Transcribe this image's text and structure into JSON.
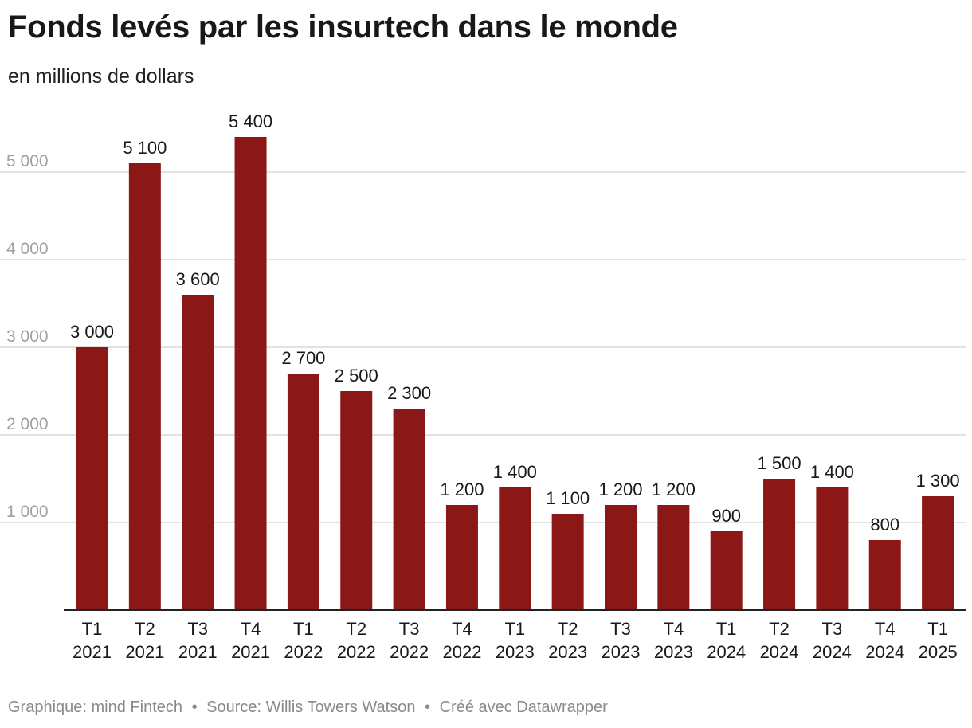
{
  "header": {
    "title": "Fonds levés par les insurtech dans le monde",
    "subtitle": "en millions de dollars"
  },
  "footer": {
    "graphic_label": "Graphique: mind Fintech",
    "source_label": "Source: Willis Towers Watson",
    "created_label": "Créé avec Datawrapper",
    "separator": "•"
  },
  "colors": {
    "bar": "#8b1717",
    "grid": "#d9d9d9",
    "axis_tick_text": "#a0a0a0",
    "baseline": "#222222"
  },
  "chart_data": {
    "type": "bar",
    "categories": [
      [
        "T1",
        "2021"
      ],
      [
        "T2",
        "2021"
      ],
      [
        "T3",
        "2021"
      ],
      [
        "T4",
        "2021"
      ],
      [
        "T1",
        "2022"
      ],
      [
        "T2",
        "2022"
      ],
      [
        "T3",
        "2022"
      ],
      [
        "T4",
        "2022"
      ],
      [
        "T1",
        "2023"
      ],
      [
        "T2",
        "2023"
      ],
      [
        "T3",
        "2023"
      ],
      [
        "T4",
        "2023"
      ],
      [
        "T1",
        "2024"
      ],
      [
        "T2",
        "2024"
      ],
      [
        "T3",
        "2024"
      ],
      [
        "T4",
        "2024"
      ],
      [
        "T1",
        "2025"
      ]
    ],
    "values": [
      3000,
      5100,
      3600,
      5400,
      2700,
      2500,
      2300,
      1200,
      1400,
      1100,
      1200,
      1200,
      900,
      1500,
      1400,
      800,
      1300
    ],
    "value_labels": [
      "3 000",
      "5 100",
      "3 600",
      "5 400",
      "2 700",
      "2 500",
      "2 300",
      "1 200",
      "1 400",
      "1 100",
      "1 200",
      "1 200",
      "900",
      "1 500",
      "1 400",
      "800",
      "1 300"
    ],
    "title": "Fonds levés par les insurtech dans le monde",
    "subtitle": "en millions de dollars",
    "xlabel": "",
    "ylabel": "",
    "ylim": [
      0,
      5400
    ],
    "yticks": [
      1000,
      2000,
      3000,
      4000,
      5000
    ],
    "ytick_labels": [
      "1 000",
      "2 000",
      "3 000",
      "4 000",
      "5 000"
    ],
    "grid": true,
    "legend": false
  }
}
